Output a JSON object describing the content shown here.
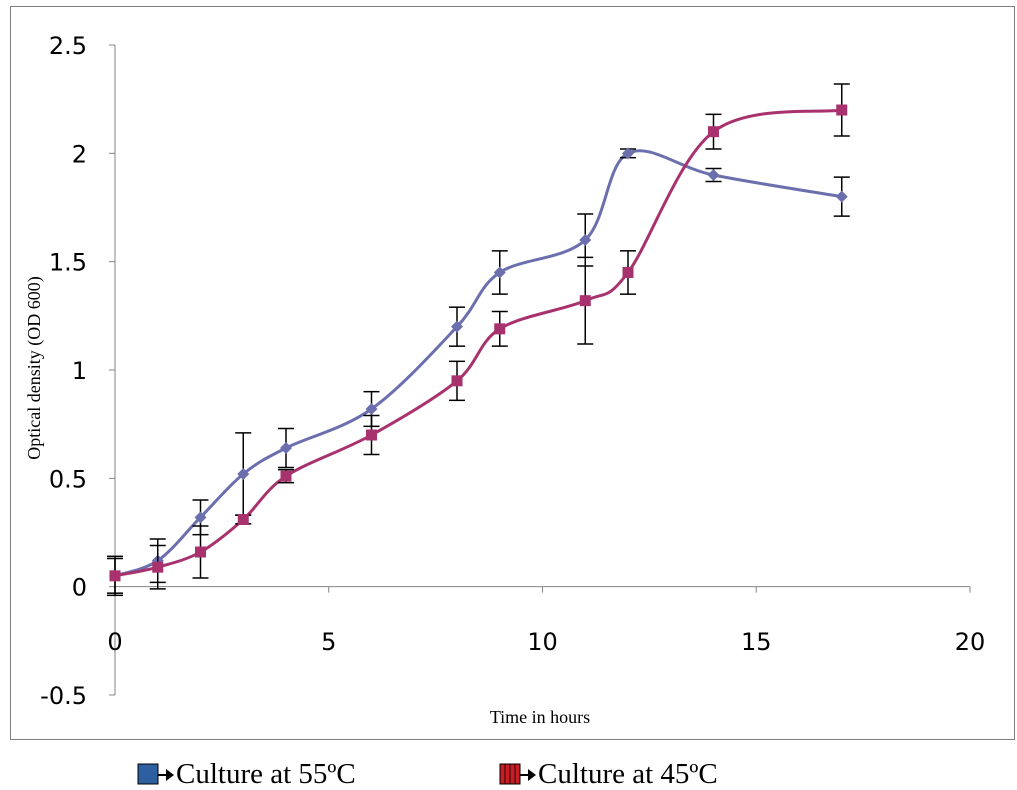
{
  "chart_data": {
    "type": "line",
    "xlabel": "Time in hours",
    "ylabel": "Optical density (OD 600)",
    "xlim": [
      0,
      20
    ],
    "ylim": [
      -0.5,
      2.5
    ],
    "x_ticks": [
      0,
      5,
      10,
      15,
      20
    ],
    "y_ticks": [
      -0.5,
      0,
      0.5,
      1,
      1.5,
      2,
      2.5
    ],
    "grid": false,
    "legend_position": "bottom",
    "series": [
      {
        "name": "Culture at 55ºC",
        "color": "#6b6fae",
        "legend_color": "#2e5fa0",
        "marker": "diamond",
        "x": [
          0,
          1,
          2,
          3,
          4,
          6,
          8,
          9,
          11,
          12,
          14,
          17
        ],
        "y": [
          0.05,
          0.12,
          0.32,
          0.52,
          0.64,
          0.82,
          1.2,
          1.45,
          1.6,
          2.0,
          1.9,
          1.8
        ],
        "err": [
          0.08,
          0.1,
          0.08,
          0.19,
          0.09,
          0.08,
          0.09,
          0.1,
          0.12,
          0.02,
          0.03,
          0.09
        ]
      },
      {
        "name": "Culture at 45ºC",
        "color": "#a8326e",
        "legend_color": "#c81d25",
        "marker": "square",
        "x": [
          0,
          1,
          2,
          3,
          4,
          6,
          8,
          9,
          11,
          12,
          14,
          17
        ],
        "y": [
          0.05,
          0.09,
          0.16,
          0.31,
          0.51,
          0.7,
          0.95,
          1.19,
          1.32,
          1.45,
          2.1,
          2.2
        ],
        "err": [
          0.09,
          0.1,
          0.12,
          0.02,
          0.03,
          0.09,
          0.09,
          0.08,
          0.2,
          0.1,
          0.08,
          0.12
        ]
      }
    ]
  }
}
